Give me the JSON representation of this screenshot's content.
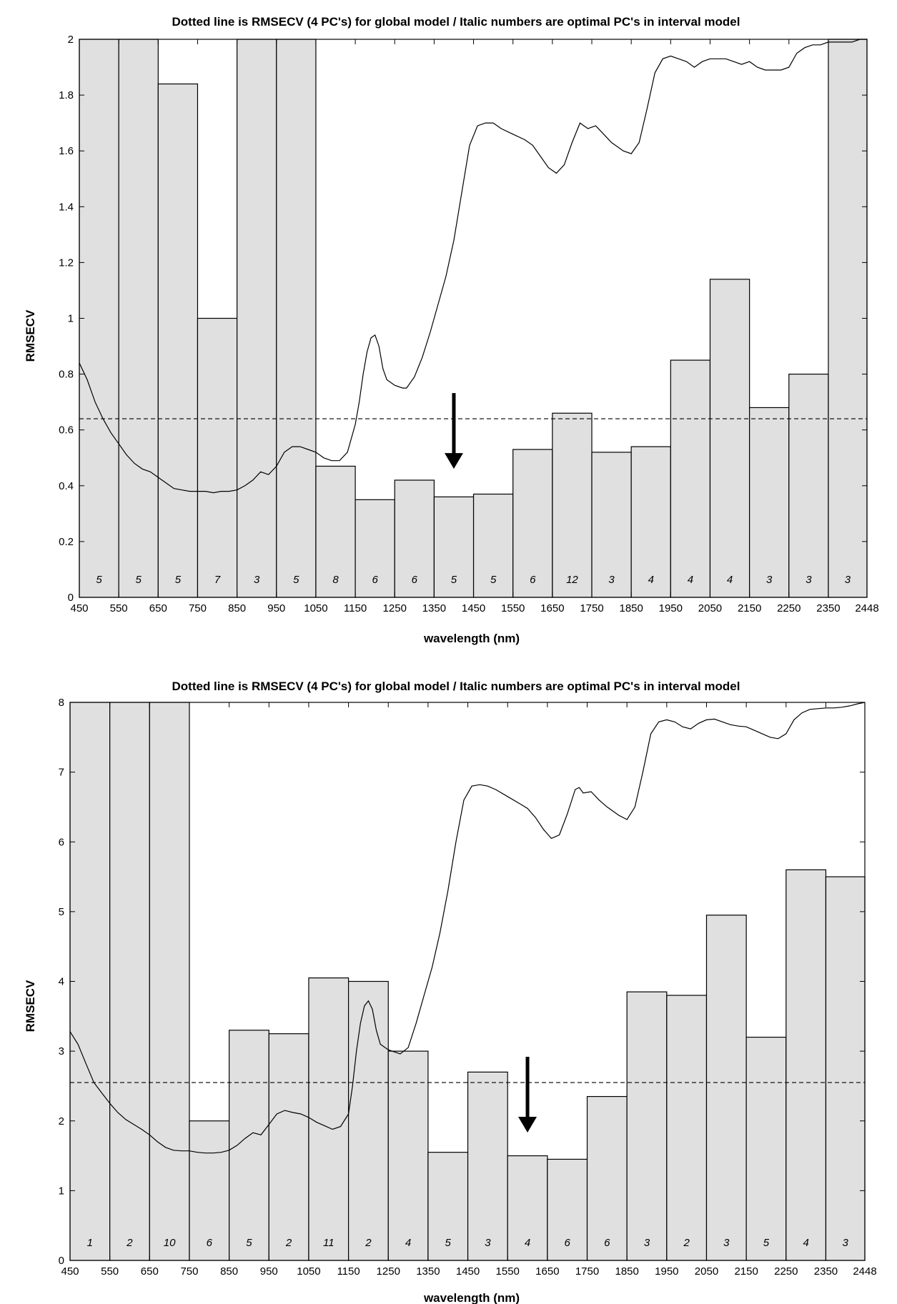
{
  "chart_data": [
    {
      "type": "bar",
      "title": "Dotted line is RMSECV (4 PC's) for global model / Italic numbers are optimal PC's in interval model",
      "xlabel": "wavelength (nm)",
      "ylabel": "RMSECV",
      "xlim": [
        450,
        2448
      ],
      "ylim": [
        0,
        2
      ],
      "xticks": [
        450,
        550,
        650,
        750,
        850,
        950,
        1050,
        1150,
        1250,
        1350,
        1450,
        1550,
        1650,
        1750,
        1850,
        1950,
        2050,
        2150,
        2250,
        2350,
        2448
      ],
      "yticks": [
        0,
        0.2,
        0.4,
        0.6,
        0.8,
        1,
        1.2,
        1.4,
        1.6,
        1.8,
        2
      ],
      "ytick_labels": [
        "0",
        "0.2",
        "0.4",
        "0.6",
        "0.8",
        "1",
        "1.2",
        "1.4",
        "1.6",
        "1.8",
        "2"
      ],
      "intervals": [
        [
          450,
          550
        ],
        [
          550,
          650
        ],
        [
          650,
          750
        ],
        [
          750,
          850
        ],
        [
          850,
          950
        ],
        [
          950,
          1050
        ],
        [
          1050,
          1150
        ],
        [
          1150,
          1250
        ],
        [
          1250,
          1350
        ],
        [
          1350,
          1450
        ],
        [
          1450,
          1550
        ],
        [
          1550,
          1650
        ],
        [
          1650,
          1750
        ],
        [
          1750,
          1850
        ],
        [
          1850,
          1950
        ],
        [
          1950,
          2050
        ],
        [
          2050,
          2150
        ],
        [
          2150,
          2250
        ],
        [
          2250,
          2350
        ],
        [
          2350,
          2448
        ]
      ],
      "values": [
        2.0,
        2.0,
        1.84,
        1.0,
        2.0,
        2.0,
        0.47,
        0.35,
        0.42,
        0.36,
        0.37,
        0.53,
        0.66,
        0.52,
        0.54,
        0.85,
        1.14,
        0.68,
        0.8,
        2.0
      ],
      "optimal_pcs": [
        "5",
        "5",
        "5",
        "7",
        "3",
        "5",
        "8",
        "6",
        "6",
        "5",
        "5",
        "6",
        "12",
        "3",
        "4",
        "4",
        "4",
        "3",
        "3",
        "3"
      ],
      "global_rmsecv": 0.64,
      "arrow_at": 1400,
      "spectrum": [
        [
          450,
          0.84
        ],
        [
          470,
          0.78
        ],
        [
          490,
          0.7
        ],
        [
          510,
          0.64
        ],
        [
          530,
          0.59
        ],
        [
          550,
          0.55
        ],
        [
          570,
          0.51
        ],
        [
          590,
          0.48
        ],
        [
          610,
          0.46
        ],
        [
          630,
          0.45
        ],
        [
          650,
          0.43
        ],
        [
          670,
          0.41
        ],
        [
          690,
          0.39
        ],
        [
          710,
          0.385
        ],
        [
          730,
          0.38
        ],
        [
          750,
          0.38
        ],
        [
          770,
          0.38
        ],
        [
          790,
          0.375
        ],
        [
          810,
          0.38
        ],
        [
          830,
          0.38
        ],
        [
          850,
          0.385
        ],
        [
          870,
          0.4
        ],
        [
          890,
          0.42
        ],
        [
          910,
          0.45
        ],
        [
          930,
          0.44
        ],
        [
          950,
          0.47
        ],
        [
          970,
          0.52
        ],
        [
          990,
          0.54
        ],
        [
          1010,
          0.54
        ],
        [
          1030,
          0.53
        ],
        [
          1050,
          0.52
        ],
        [
          1070,
          0.5
        ],
        [
          1090,
          0.49
        ],
        [
          1110,
          0.49
        ],
        [
          1130,
          0.52
        ],
        [
          1150,
          0.62
        ],
        [
          1160,
          0.7
        ],
        [
          1170,
          0.8
        ],
        [
          1180,
          0.88
        ],
        [
          1190,
          0.93
        ],
        [
          1200,
          0.94
        ],
        [
          1210,
          0.9
        ],
        [
          1220,
          0.82
        ],
        [
          1230,
          0.78
        ],
        [
          1250,
          0.76
        ],
        [
          1270,
          0.75
        ],
        [
          1280,
          0.75
        ],
        [
          1300,
          0.79
        ],
        [
          1320,
          0.86
        ],
        [
          1340,
          0.95
        ],
        [
          1360,
          1.05
        ],
        [
          1380,
          1.15
        ],
        [
          1400,
          1.28
        ],
        [
          1420,
          1.45
        ],
        [
          1440,
          1.62
        ],
        [
          1460,
          1.69
        ],
        [
          1480,
          1.7
        ],
        [
          1500,
          1.7
        ],
        [
          1520,
          1.68
        ],
        [
          1550,
          1.66
        ],
        [
          1580,
          1.64
        ],
        [
          1600,
          1.62
        ],
        [
          1620,
          1.58
        ],
        [
          1640,
          1.54
        ],
        [
          1660,
          1.52
        ],
        [
          1680,
          1.55
        ],
        [
          1700,
          1.63
        ],
        [
          1720,
          1.7
        ],
        [
          1730,
          1.69
        ],
        [
          1740,
          1.68
        ],
        [
          1760,
          1.69
        ],
        [
          1780,
          1.66
        ],
        [
          1800,
          1.63
        ],
        [
          1830,
          1.6
        ],
        [
          1850,
          1.59
        ],
        [
          1870,
          1.63
        ],
        [
          1890,
          1.75
        ],
        [
          1910,
          1.88
        ],
        [
          1930,
          1.93
        ],
        [
          1950,
          1.94
        ],
        [
          1970,
          1.93
        ],
        [
          1990,
          1.92
        ],
        [
          2010,
          1.9
        ],
        [
          2030,
          1.92
        ],
        [
          2050,
          1.93
        ],
        [
          2070,
          1.93
        ],
        [
          2090,
          1.93
        ],
        [
          2110,
          1.92
        ],
        [
          2130,
          1.91
        ],
        [
          2150,
          1.92
        ],
        [
          2170,
          1.9
        ],
        [
          2190,
          1.89
        ],
        [
          2210,
          1.89
        ],
        [
          2230,
          1.89
        ],
        [
          2250,
          1.9
        ],
        [
          2270,
          1.95
        ],
        [
          2290,
          1.97
        ],
        [
          2310,
          1.98
        ],
        [
          2330,
          1.98
        ],
        [
          2350,
          1.99
        ],
        [
          2370,
          1.99
        ],
        [
          2390,
          1.99
        ],
        [
          2410,
          1.99
        ],
        [
          2430,
          2.0
        ],
        [
          2448,
          2.0
        ]
      ]
    },
    {
      "type": "bar",
      "title": "Dotted line is RMSECV (4 PC's) for global model / Italic numbers are optimal PC's in interval model",
      "xlabel": "wavelength (nm)",
      "ylabel": "RMSECV",
      "xlim": [
        450,
        2448
      ],
      "ylim": [
        0,
        8
      ],
      "xticks": [
        450,
        550,
        650,
        750,
        850,
        950,
        1050,
        1150,
        1250,
        1350,
        1450,
        1550,
        1650,
        1750,
        1850,
        1950,
        2050,
        2150,
        2250,
        2350,
        2448
      ],
      "yticks": [
        0,
        1,
        2,
        3,
        4,
        5,
        6,
        7,
        8
      ],
      "ytick_labels": [
        "0",
        "1",
        "2",
        "3",
        "4",
        "5",
        "6",
        "7",
        "8"
      ],
      "intervals": [
        [
          450,
          550
        ],
        [
          550,
          650
        ],
        [
          650,
          750
        ],
        [
          750,
          850
        ],
        [
          850,
          950
        ],
        [
          950,
          1050
        ],
        [
          1050,
          1150
        ],
        [
          1150,
          1250
        ],
        [
          1250,
          1350
        ],
        [
          1350,
          1450
        ],
        [
          1450,
          1550
        ],
        [
          1550,
          1650
        ],
        [
          1650,
          1750
        ],
        [
          1750,
          1850
        ],
        [
          1850,
          1950
        ],
        [
          1950,
          2050
        ],
        [
          2050,
          2150
        ],
        [
          2150,
          2250
        ],
        [
          2250,
          2350
        ],
        [
          2350,
          2448
        ]
      ],
      "values": [
        8.0,
        8.0,
        8.0,
        2.0,
        3.3,
        3.25,
        4.05,
        4.0,
        3.0,
        1.55,
        2.7,
        1.5,
        1.45,
        2.35,
        3.85,
        3.8,
        4.95,
        3.2,
        5.6,
        5.5
      ],
      "optimal_pcs": [
        "1",
        "2",
        "10",
        "6",
        "5",
        "2",
        "11",
        "2",
        "4",
        "5",
        "3",
        "4",
        "6",
        "6",
        "3",
        "2",
        "3",
        "5",
        "4",
        "3"
      ],
      "global_rmsecv": 2.55,
      "arrow_at": 1600,
      "spectrum": [
        [
          450,
          3.28
        ],
        [
          470,
          3.1
        ],
        [
          490,
          2.82
        ],
        [
          510,
          2.55
        ],
        [
          530,
          2.4
        ],
        [
          550,
          2.25
        ],
        [
          570,
          2.12
        ],
        [
          590,
          2.02
        ],
        [
          610,
          1.95
        ],
        [
          630,
          1.88
        ],
        [
          650,
          1.8
        ],
        [
          670,
          1.7
        ],
        [
          690,
          1.62
        ],
        [
          710,
          1.58
        ],
        [
          730,
          1.57
        ],
        [
          750,
          1.57
        ],
        [
          770,
          1.55
        ],
        [
          790,
          1.54
        ],
        [
          810,
          1.54
        ],
        [
          830,
          1.55
        ],
        [
          850,
          1.58
        ],
        [
          870,
          1.65
        ],
        [
          890,
          1.75
        ],
        [
          910,
          1.83
        ],
        [
          930,
          1.8
        ],
        [
          950,
          1.95
        ],
        [
          970,
          2.1
        ],
        [
          990,
          2.15
        ],
        [
          1010,
          2.12
        ],
        [
          1030,
          2.1
        ],
        [
          1050,
          2.05
        ],
        [
          1070,
          1.98
        ],
        [
          1090,
          1.93
        ],
        [
          1110,
          1.88
        ],
        [
          1130,
          1.92
        ],
        [
          1150,
          2.1
        ],
        [
          1160,
          2.5
        ],
        [
          1170,
          3.0
        ],
        [
          1180,
          3.4
        ],
        [
          1190,
          3.65
        ],
        [
          1200,
          3.72
        ],
        [
          1210,
          3.6
        ],
        [
          1220,
          3.3
        ],
        [
          1230,
          3.1
        ],
        [
          1250,
          3.02
        ],
        [
          1270,
          2.98
        ],
        [
          1280,
          2.96
        ],
        [
          1300,
          3.05
        ],
        [
          1320,
          3.4
        ],
        [
          1340,
          3.8
        ],
        [
          1360,
          4.2
        ],
        [
          1380,
          4.7
        ],
        [
          1400,
          5.3
        ],
        [
          1420,
          6.0
        ],
        [
          1440,
          6.6
        ],
        [
          1460,
          6.8
        ],
        [
          1480,
          6.82
        ],
        [
          1500,
          6.8
        ],
        [
          1520,
          6.75
        ],
        [
          1550,
          6.65
        ],
        [
          1580,
          6.55
        ],
        [
          1600,
          6.48
        ],
        [
          1620,
          6.35
        ],
        [
          1640,
          6.18
        ],
        [
          1660,
          6.05
        ],
        [
          1680,
          6.1
        ],
        [
          1700,
          6.4
        ],
        [
          1720,
          6.75
        ],
        [
          1730,
          6.78
        ],
        [
          1740,
          6.7
        ],
        [
          1760,
          6.72
        ],
        [
          1780,
          6.6
        ],
        [
          1800,
          6.5
        ],
        [
          1830,
          6.38
        ],
        [
          1850,
          6.32
        ],
        [
          1870,
          6.5
        ],
        [
          1890,
          7.0
        ],
        [
          1910,
          7.55
        ],
        [
          1930,
          7.72
        ],
        [
          1950,
          7.75
        ],
        [
          1970,
          7.72
        ],
        [
          1990,
          7.65
        ],
        [
          2010,
          7.62
        ],
        [
          2030,
          7.7
        ],
        [
          2050,
          7.75
        ],
        [
          2070,
          7.76
        ],
        [
          2090,
          7.72
        ],
        [
          2110,
          7.68
        ],
        [
          2130,
          7.66
        ],
        [
          2150,
          7.65
        ],
        [
          2170,
          7.6
        ],
        [
          2190,
          7.55
        ],
        [
          2210,
          7.5
        ],
        [
          2230,
          7.48
        ],
        [
          2250,
          7.55
        ],
        [
          2270,
          7.75
        ],
        [
          2290,
          7.85
        ],
        [
          2310,
          7.9
        ],
        [
          2330,
          7.91
        ],
        [
          2350,
          7.92
        ],
        [
          2370,
          7.92
        ],
        [
          2390,
          7.93
        ],
        [
          2410,
          7.95
        ],
        [
          2430,
          7.98
        ],
        [
          2448,
          8.0
        ]
      ]
    }
  ]
}
